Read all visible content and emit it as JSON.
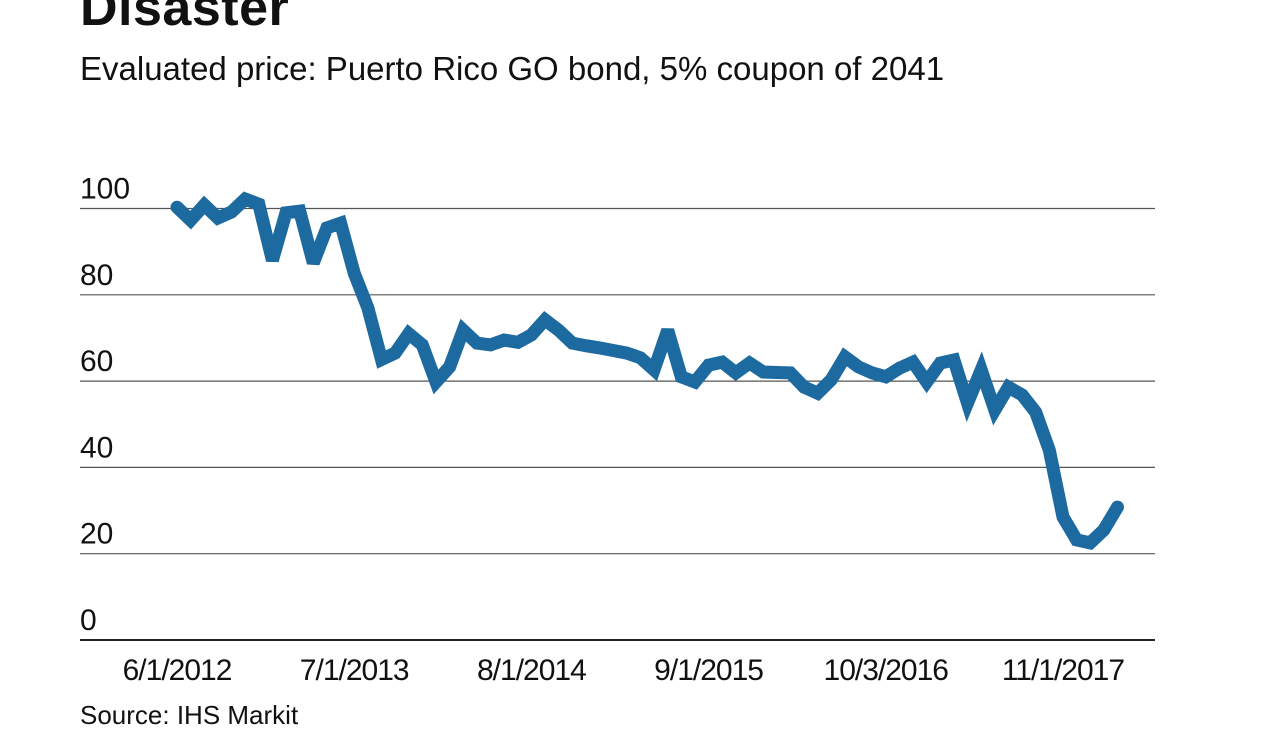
{
  "title": "Disaster",
  "subtitle": "Evaluated price: Puerto Rico GO bond, 5% coupon of 2041",
  "source": "Source: IHS Markit",
  "chart_data": {
    "type": "line",
    "title": "Disaster",
    "subtitle": "Evaluated price: Puerto Rico GO bond, 5% coupon of 2041",
    "xlabel": "",
    "ylabel": "",
    "ylim": [
      0,
      100
    ],
    "yticks": [
      0,
      20,
      40,
      60,
      80,
      100
    ],
    "xticks": [
      {
        "label": "6/1/2012",
        "date": "2012-06"
      },
      {
        "label": "7/1/2013",
        "date": "2013-07"
      },
      {
        "label": "8/1/2014",
        "date": "2014-08"
      },
      {
        "label": "9/1/2015",
        "date": "2015-09"
      },
      {
        "label": "10/3/2016",
        "date": "2016-10"
      },
      {
        "label": "11/1/2017",
        "date": "2017-11"
      }
    ],
    "grid": true,
    "line_color": "#1c6aa0",
    "series": [
      {
        "x": [
          "2012-06",
          "2012-07",
          "2012-08",
          "2012-09",
          "2012-10",
          "2012-11",
          "2012-12",
          "2013-01",
          "2013-02",
          "2013-03",
          "2013-04",
          "2013-05",
          "2013-06",
          "2013-07",
          "2013-08",
          "2013-09",
          "2013-10",
          "2013-11",
          "2013-12",
          "2014-01",
          "2014-02",
          "2014-03",
          "2014-04",
          "2014-05",
          "2014-06",
          "2014-07",
          "2014-08",
          "2014-09",
          "2014-10",
          "2014-11",
          "2014-12",
          "2015-01",
          "2015-02",
          "2015-03",
          "2015-04",
          "2015-05",
          "2015-06",
          "2015-07",
          "2015-08",
          "2015-09",
          "2015-10",
          "2015-11",
          "2015-12",
          "2016-01",
          "2016-02",
          "2016-03",
          "2016-04",
          "2016-05",
          "2016-06",
          "2016-07",
          "2016-08",
          "2016-09",
          "2016-10",
          "2016-11",
          "2016-12",
          "2017-01",
          "2017-02",
          "2017-03",
          "2017-04",
          "2017-05",
          "2017-06",
          "2017-07",
          "2017-08",
          "2017-09",
          "2017-10",
          "2017-11",
          "2017-12",
          "2018-01",
          "2018-02",
          "2018-03"
        ],
        "values": [
          100.3,
          97.3,
          100.8,
          97.8,
          99.2,
          102.2,
          101,
          88,
          99,
          99.4,
          87.4,
          95.5,
          96.6,
          85,
          77,
          65,
          66.5,
          71,
          68.4,
          59.8,
          63.3,
          71.8,
          68.8,
          68.4,
          69.5,
          69,
          70.7,
          74.2,
          71.8,
          68.8,
          68.2,
          67.7,
          67.1,
          66.5,
          65.4,
          62.6,
          71.8,
          61,
          59.8,
          63.7,
          64.4,
          61.9,
          64.2,
          62.1,
          62,
          61.9,
          58.6,
          57.2,
          60.3,
          65.6,
          63.3,
          61.9,
          61,
          63,
          64.4,
          59.8,
          64.2,
          64.9,
          54.9,
          62.6,
          53.3,
          58.6,
          56.8,
          52.8,
          44,
          28.5,
          23.2,
          22.5,
          25.5,
          30.8
        ]
      }
    ]
  }
}
